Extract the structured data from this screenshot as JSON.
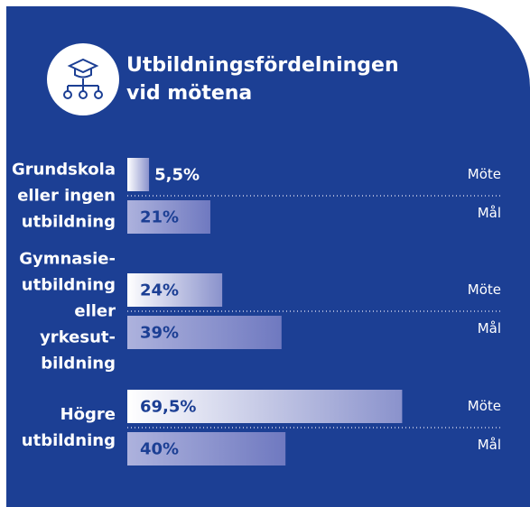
{
  "chart_data": {
    "type": "bar",
    "orientation": "horizontal",
    "title": "Utbildningsfördelningen\nvid mötena",
    "categories": [
      "Grundskola\neller ingen\nutbildning",
      "Gymnasie-\nutbildning\neller\nyrkesut-\nbildning",
      "Högre\nutbildning"
    ],
    "series": [
      {
        "name": "Möte",
        "color": "#8a92cc",
        "values": [
          5.5,
          24,
          69.5
        ],
        "value_labels": [
          "5,5%",
          "24%",
          "69,5%"
        ]
      },
      {
        "name": "Mål",
        "color": "#6f79c0",
        "values": [
          21,
          39,
          40
        ],
        "value_labels": [
          "21%",
          "39%",
          "40%"
        ]
      }
    ],
    "xlim": [
      0,
      100
    ]
  }
}
